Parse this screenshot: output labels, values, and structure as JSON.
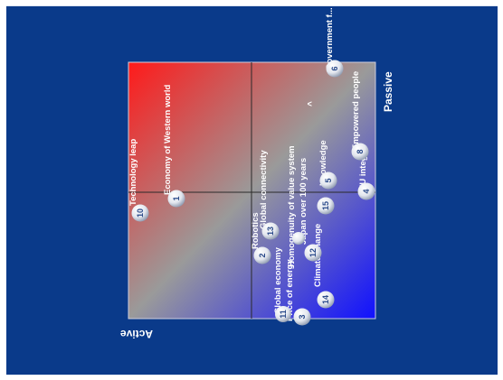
{
  "axes": {
    "active_label": "Active",
    "passive_label": "Passive"
  },
  "colors": {
    "background": "#0a3a8a",
    "corner_red": "#ff1a1a",
    "corner_blue": "#1010ff",
    "mid_gray": "#999999"
  },
  "stray_mark": "^",
  "items": [
    {
      "num": "1",
      "label": "Economy of Western world"
    },
    {
      "num": "2",
      "label": "Robotics"
    },
    {
      "num": "3",
      "label": "Price of energy"
    },
    {
      "num": "4",
      "label": "EU integr..."
    },
    {
      "num": "5",
      "label": "Knowledge"
    },
    {
      "num": "6",
      "label": "Government f..."
    },
    {
      "num": "8",
      "label": "Empowered people"
    },
    {
      "num": "10",
      "label": "Technology leap"
    },
    {
      "num": "11",
      "label": "Global economy"
    },
    {
      "num": "12",
      "label": "Climate change"
    },
    {
      "num": "13",
      "label": "Global connectivity"
    },
    {
      "num": "14",
      "label": ""
    },
    {
      "num": "15",
      "label": "Japan over 100 years"
    },
    {
      "num": "",
      "label": "Homogenuity of value system"
    }
  ]
}
